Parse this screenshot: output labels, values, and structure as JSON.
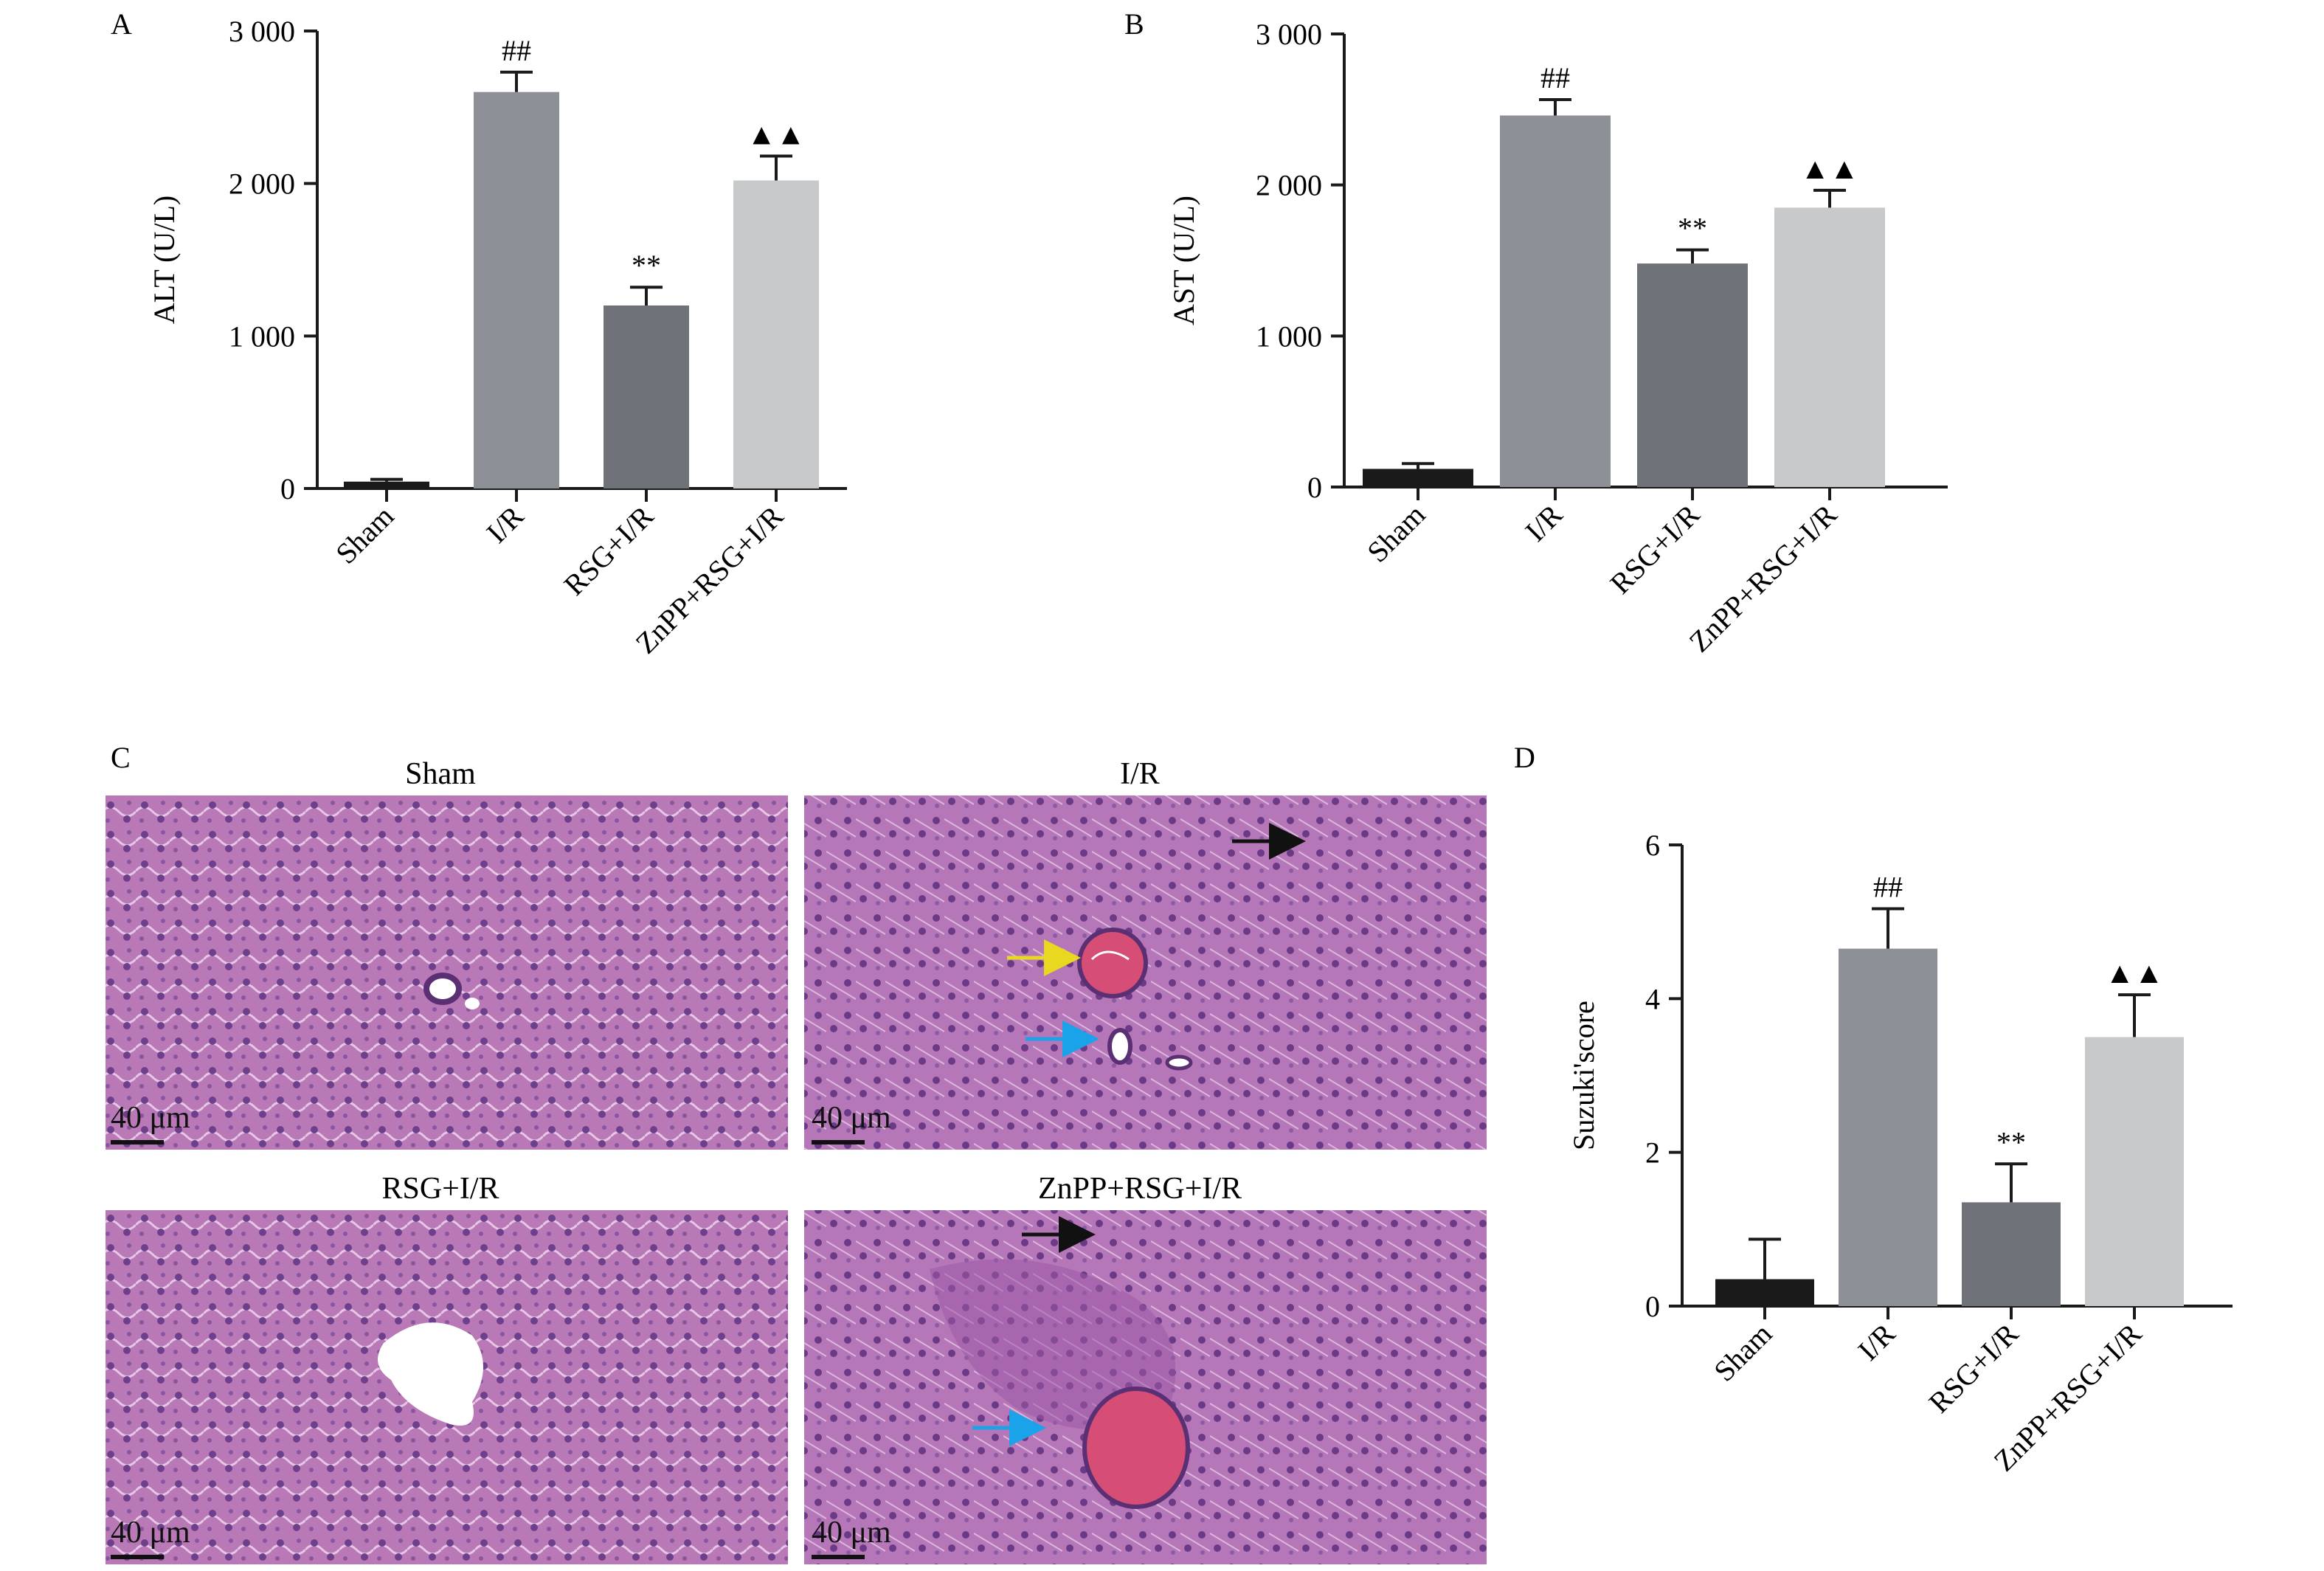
{
  "panels": [
    {
      "id": "A",
      "letter": "A"
    },
    {
      "id": "B",
      "letter": "B"
    },
    {
      "id": "C",
      "letter": "C"
    },
    {
      "id": "D",
      "letter": "D"
    }
  ],
  "chart_data": [
    {
      "panel": "A",
      "type": "bar",
      "categories": [
        "Sham",
        "I/R",
        "RSG+I/R",
        "ZnPP+RSG+I/R"
      ],
      "values": [
        45,
        2600,
        1200,
        2020
      ],
      "errors": [
        15,
        130,
        120,
        160
      ],
      "annotations": [
        "",
        "##",
        "**",
        "▲▲"
      ],
      "ylabel": "ALT (U/L)",
      "ylim": [
        0,
        3000
      ],
      "yticks": [
        0,
        1000,
        2000,
        3000
      ],
      "ytick_labels": [
        "0",
        "1 000",
        "2 000",
        "3 000"
      ],
      "colors": [
        "#1a1a1a",
        "#8d9097",
        "#6f7278",
        "#c8c9cb"
      ]
    },
    {
      "panel": "B",
      "type": "bar",
      "categories": [
        "Sham",
        "I/R",
        "RSG+I/R",
        "ZnPP+RSG+I/R"
      ],
      "values": [
        120,
        2460,
        1480,
        1850
      ],
      "errors": [
        35,
        105,
        90,
        115
      ],
      "annotations": [
        "",
        "##",
        "**",
        "▲▲"
      ],
      "ylabel": "AST (U/L)",
      "ylim": [
        0,
        3000
      ],
      "yticks": [
        0,
        1000,
        2000,
        3000
      ],
      "ytick_labels": [
        "0",
        "1 000",
        "2 000",
        "3 000"
      ],
      "colors": [
        "#1a1a1a",
        "#8d9097",
        "#6f7278",
        "#c8c9cb"
      ]
    },
    {
      "panel": "D",
      "type": "bar",
      "categories": [
        "Sham",
        "I/R",
        "RSG+I/R",
        "ZnPP+RSG+I/R"
      ],
      "values": [
        0.35,
        4.65,
        1.35,
        3.5
      ],
      "errors": [
        0.52,
        0.52,
        0.5,
        0.55
      ],
      "annotations": [
        "",
        "##",
        "**",
        "▲▲"
      ],
      "ylabel": "Suzuki'score",
      "ylim": [
        0,
        6
      ],
      "yticks": [
        0,
        2,
        4,
        6
      ],
      "ytick_labels": [
        "0",
        "2",
        "4",
        "6"
      ],
      "colors": [
        "#1a1a1a",
        "#8d9097",
        "#6f7278",
        "#c8c9cb"
      ]
    }
  ],
  "micrographs": [
    {
      "title": "Sham",
      "scale": "40 μm",
      "arrows": [],
      "vessel": "small-lumen"
    },
    {
      "title": "I/R",
      "scale": "40 μm",
      "arrows": [
        {
          "color": "#111111",
          "meaning": "black"
        },
        {
          "color": "#e8d820",
          "meaning": "yellow"
        },
        {
          "color": "#1aa3e8",
          "meaning": "blue"
        }
      ],
      "vessel": "congested"
    },
    {
      "title": "RSG+I/R",
      "scale": "40 μm",
      "arrows": [],
      "vessel": "open-lumen"
    },
    {
      "title": "ZnPP+RSG+I/R",
      "scale": "40 μm",
      "arrows": [
        {
          "color": "#111111",
          "meaning": "black"
        },
        {
          "color": "#1aa3e8",
          "meaning": "blue"
        }
      ],
      "vessel": "congested-large"
    }
  ],
  "colors": {
    "tissue_base": "#b46eb4",
    "tissue_dark": "#7a3f8c",
    "lumen": "#ffffff",
    "congestion": "#d64d76"
  }
}
